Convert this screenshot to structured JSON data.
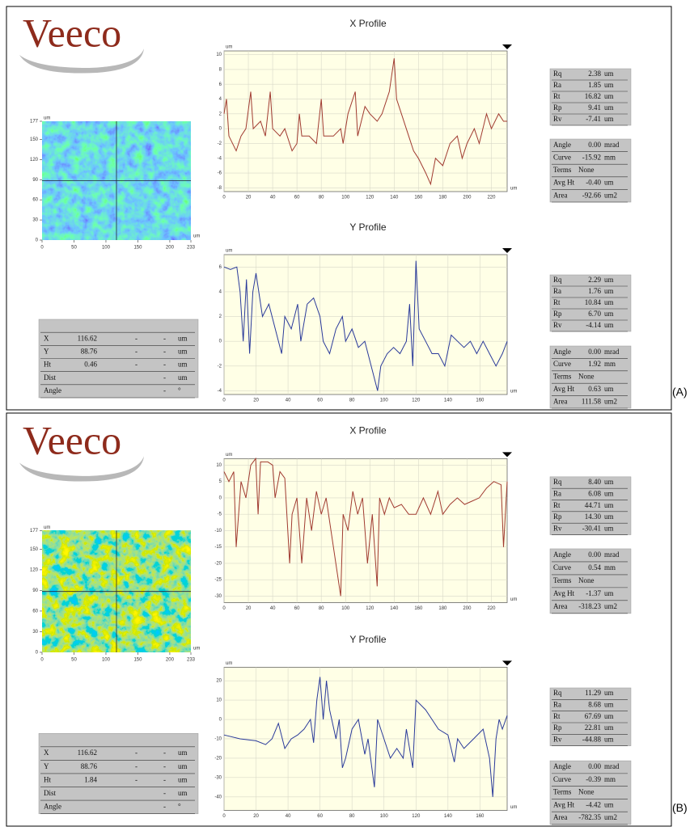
{
  "chart_data": [
    {
      "type": "line",
      "title": "X Profile",
      "xlabel": "um",
      "ylabel": "um",
      "x": [
        0,
        2,
        4,
        10,
        14,
        18,
        22,
        24,
        30,
        34,
        38,
        40,
        46,
        50,
        56,
        60,
        62,
        64,
        70,
        76,
        80,
        82,
        90,
        96,
        98,
        102,
        108,
        110,
        116,
        120,
        126,
        130,
        136,
        140,
        142,
        146,
        150,
        156,
        160,
        166,
        170,
        174,
        180,
        186,
        192,
        196,
        200,
        206,
        210,
        216,
        220,
        226,
        230,
        233
      ],
      "series": [
        {
          "color": "#a03a30",
          "values": [
            2,
            4,
            -1,
            -3,
            -1,
            0,
            5,
            0,
            1,
            -1,
            5,
            0,
            -1,
            0,
            -3,
            -2,
            2,
            -1,
            -1,
            -2,
            4,
            -1,
            -1,
            0,
            -2,
            2,
            5,
            -1,
            3,
            2,
            1,
            2,
            5,
            9.5,
            4,
            2,
            0,
            -3,
            -4,
            -6,
            -7.5,
            -4,
            -5,
            -2,
            -1,
            -4,
            -2,
            0,
            -2,
            2,
            0,
            2,
            1,
            1
          ]
        }
      ],
      "xlim": [
        0,
        233
      ],
      "ylim": [
        -8.5,
        10.5
      ],
      "xticks": [
        0,
        20,
        40,
        60,
        80,
        100,
        120,
        140,
        160,
        180,
        200,
        220
      ],
      "yticks": [
        -8,
        -6,
        -4,
        -2,
        0,
        2,
        4,
        6,
        8,
        10
      ],
      "grid": true
    },
    {
      "type": "line",
      "title": "Y Profile",
      "xlabel": "um",
      "ylabel": "um",
      "x": [
        0,
        4,
        8,
        10,
        12,
        14,
        16,
        18,
        20,
        24,
        28,
        32,
        36,
        38,
        42,
        46,
        48,
        52,
        56,
        60,
        62,
        66,
        70,
        74,
        76,
        80,
        84,
        88,
        92,
        96,
        98,
        102,
        106,
        110,
        114,
        116,
        118,
        120,
        122,
        126,
        130,
        134,
        138,
        142,
        146,
        150,
        154,
        158,
        162,
        166,
        170,
        174,
        177
      ],
      "series": [
        {
          "color": "#2a3a9a",
          "values": [
            6,
            5.8,
            6,
            4,
            0,
            5,
            -1,
            4,
            5.5,
            2,
            3,
            1,
            -1,
            2,
            1,
            3,
            0,
            3,
            3.5,
            2,
            0,
            -1,
            1,
            2,
            0,
            1,
            -0.5,
            0,
            -2,
            -4,
            -2,
            -1,
            -0.5,
            -1,
            0,
            3,
            -2,
            6.5,
            1,
            0,
            -1,
            -1,
            -2,
            0.5,
            0,
            -0.5,
            0,
            -1,
            0,
            -1,
            -2,
            -1,
            0
          ]
        }
      ],
      "xlim": [
        0,
        177
      ],
      "ylim": [
        -4.3,
        7
      ],
      "xticks": [
        0,
        20,
        40,
        60,
        80,
        100,
        120,
        140,
        160
      ],
      "yticks": [
        -4,
        -2,
        0,
        2,
        4,
        6
      ],
      "grid": true
    },
    {
      "type": "line",
      "title": "X Profile",
      "xlabel": "um",
      "ylabel": "um",
      "x": [
        0,
        4,
        8,
        10,
        14,
        18,
        22,
        26,
        28,
        30,
        36,
        40,
        42,
        46,
        50,
        54,
        56,
        60,
        64,
        68,
        72,
        76,
        80,
        84,
        88,
        92,
        96,
        98,
        102,
        106,
        110,
        114,
        118,
        122,
        126,
        128,
        132,
        136,
        140,
        146,
        152,
        158,
        164,
        170,
        176,
        180,
        186,
        192,
        198,
        204,
        210,
        216,
        222,
        228,
        230,
        233
      ],
      "series": [
        {
          "color": "#a03a30",
          "values": [
            8,
            5,
            8,
            -15,
            5,
            0,
            10,
            12,
            -5,
            11,
            11,
            10,
            0,
            8,
            6,
            -20,
            -5,
            0,
            -20,
            0,
            -10,
            2,
            -5,
            0,
            -10,
            -20,
            -30,
            -5,
            -10,
            2,
            -5,
            0,
            -20,
            -5,
            -27,
            0,
            -5,
            0,
            -3,
            -2,
            -5,
            -5,
            0,
            -5,
            2,
            -5,
            -2,
            0,
            -2,
            -1,
            0,
            3,
            5,
            4,
            -15,
            5
          ]
        }
      ],
      "xlim": [
        0,
        233
      ],
      "ylim": [
        -32,
        12
      ],
      "xticks": [
        0,
        20,
        40,
        60,
        80,
        100,
        120,
        140,
        160,
        180,
        200,
        220
      ],
      "yticks": [
        -30,
        -25,
        -20,
        -15,
        -10,
        -5,
        0,
        5,
        10
      ],
      "grid": true
    },
    {
      "type": "line",
      "title": "Y Profile",
      "xlabel": "um",
      "ylabel": "um",
      "x": [
        0,
        10,
        20,
        26,
        30,
        34,
        38,
        42,
        46,
        50,
        54,
        56,
        58,
        60,
        62,
        64,
        66,
        70,
        72,
        74,
        76,
        80,
        84,
        88,
        90,
        94,
        96,
        100,
        104,
        108,
        112,
        114,
        118,
        120,
        126,
        130,
        134,
        140,
        144,
        146,
        150,
        156,
        162,
        166,
        168,
        170,
        172,
        174,
        177
      ],
      "series": [
        {
          "color": "#2a3a9a",
          "values": [
            -8,
            -10,
            -11,
            -13,
            -10,
            -2,
            -15,
            -10,
            -8,
            -5,
            0,
            -12,
            10,
            22,
            0,
            20,
            5,
            -10,
            0,
            -25,
            -20,
            -5,
            0,
            -18,
            -10,
            -35,
            0,
            -10,
            -20,
            -15,
            -20,
            -5,
            -25,
            10,
            5,
            0,
            -5,
            -8,
            -22,
            -10,
            -15,
            -10,
            -5,
            -20,
            -40,
            -10,
            0,
            -5,
            2
          ]
        }
      ],
      "xlim": [
        0,
        177
      ],
      "ylim": [
        -47,
        27
      ],
      "xticks": [
        0,
        20,
        40,
        60,
        80,
        100,
        120,
        140,
        160
      ],
      "yticks": [
        -40,
        -30,
        -20,
        -10,
        0,
        10,
        20
      ],
      "grid": true
    }
  ],
  "panels": [
    {
      "label": "(A)",
      "logo": "Veeco",
      "map": {
        "xlabel": "um",
        "ylabel": "um",
        "xlim": [
          0,
          233
        ],
        "ylim": [
          0,
          177
        ],
        "xticks": [
          0,
          50,
          100,
          150,
          200,
          233
        ],
        "yticks": [
          0,
          30,
          60,
          90,
          120,
          150,
          177
        ]
      },
      "cursor": [
        [
          "X",
          "116.62",
          "-",
          "-",
          "um"
        ],
        [
          "Y",
          "88.76",
          "-",
          "-",
          "um"
        ],
        [
          "Ht",
          "0.46",
          "-",
          "-",
          "um"
        ],
        [
          "Dist",
          "-",
          "um"
        ],
        [
          "Angle",
          "-",
          "°"
        ]
      ],
      "x_stats": [
        [
          "Rq",
          "2.38",
          "um"
        ],
        [
          "Ra",
          "1.85",
          "um"
        ],
        [
          "Rt",
          "16.82",
          "um"
        ],
        [
          "Rp",
          "9.41",
          "um"
        ],
        [
          "Rv",
          "-7.41",
          "um"
        ]
      ],
      "x_fit": [
        [
          "Angle",
          "0.00",
          "mrad"
        ],
        [
          "Curve",
          "-15.92",
          "mm"
        ],
        [
          "Terms",
          "None"
        ],
        [
          "Avg Ht",
          "-0.40",
          "um"
        ],
        [
          "Area",
          "-92.66",
          "um2"
        ]
      ],
      "y_stats": [
        [
          "Rq",
          "2.29",
          "um"
        ],
        [
          "Ra",
          "1.76",
          "um"
        ],
        [
          "Rt",
          "10.84",
          "um"
        ],
        [
          "Rp",
          "6.70",
          "um"
        ],
        [
          "Rv",
          "-4.14",
          "um"
        ]
      ],
      "y_fit": [
        [
          "Angle",
          "0.00",
          "mrad"
        ],
        [
          "Curve",
          "1.92",
          "mm"
        ],
        [
          "Terms",
          "None"
        ],
        [
          "Avg Ht",
          "0.63",
          "um"
        ],
        [
          "Area",
          "111.58",
          "um2"
        ]
      ]
    },
    {
      "label": "(B)",
      "logo": "Veeco",
      "map": {
        "xlabel": "um",
        "ylabel": "um",
        "xlim": [
          0,
          233
        ],
        "ylim": [
          0,
          177
        ],
        "xticks": [
          0,
          50,
          100,
          150,
          200,
          233
        ],
        "yticks": [
          0,
          30,
          60,
          90,
          120,
          150,
          177
        ]
      },
      "cursor": [
        [
          "X",
          "116.62",
          "-",
          "-",
          "um"
        ],
        [
          "Y",
          "88.76",
          "-",
          "-",
          "um"
        ],
        [
          "Ht",
          "1.84",
          "-",
          "-",
          "um"
        ],
        [
          "Dist",
          "-",
          "um"
        ],
        [
          "Angle",
          "-",
          "°"
        ]
      ],
      "x_stats": [
        [
          "Rq",
          "8.40",
          "um"
        ],
        [
          "Ra",
          "6.08",
          "um"
        ],
        [
          "Rt",
          "44.71",
          "um"
        ],
        [
          "Rp",
          "14.30",
          "um"
        ],
        [
          "Rv",
          "-30.41",
          "um"
        ]
      ],
      "x_fit": [
        [
          "Angle",
          "0.00",
          "mrad"
        ],
        [
          "Curve",
          "0.54",
          "mm"
        ],
        [
          "Terms",
          "None"
        ],
        [
          "Avg Ht",
          "-1.37",
          "um"
        ],
        [
          "Area",
          "-318.23",
          "um2"
        ]
      ],
      "y_stats": [
        [
          "Rq",
          "11.29",
          "um"
        ],
        [
          "Ra",
          "8.68",
          "um"
        ],
        [
          "Rt",
          "67.69",
          "um"
        ],
        [
          "Rp",
          "22.81",
          "um"
        ],
        [
          "Rv",
          "-44.88",
          "um"
        ]
      ],
      "y_fit": [
        [
          "Angle",
          "0.00",
          "mrad"
        ],
        [
          "Curve",
          "-0.39",
          "mm"
        ],
        [
          "Terms",
          "None"
        ],
        [
          "Avg Ht",
          "-4.42",
          "um"
        ],
        [
          "Area",
          "-782.35",
          "um2"
        ]
      ]
    }
  ]
}
